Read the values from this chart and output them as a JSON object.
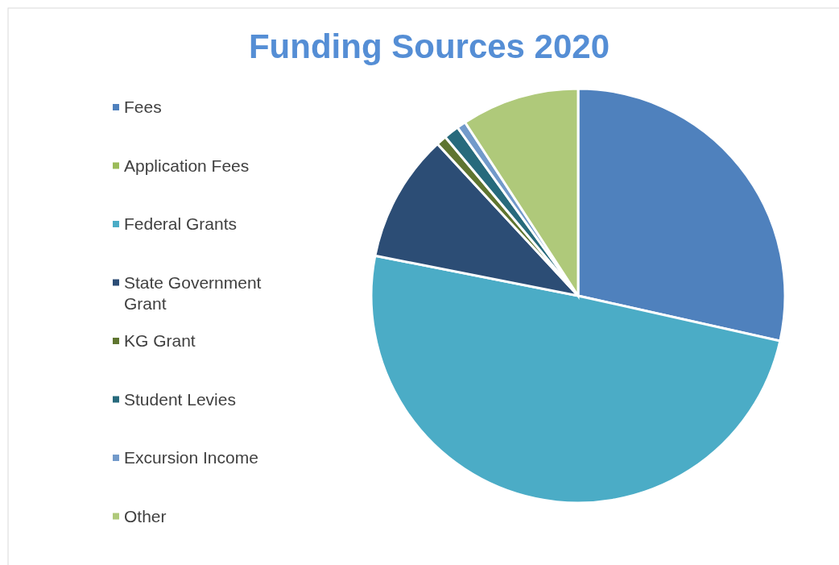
{
  "chart_data": {
    "type": "pie",
    "title": "Funding Sources 2020",
    "categories": [
      "Fees",
      "Application Fees",
      "Federal Grants",
      "State Government Grant",
      "KG Grant",
      "Student Levies",
      "Excursion Income",
      "Other"
    ],
    "values": [
      28.5,
      0,
      49.6,
      10,
      0.8,
      1.2,
      0.7,
      9.2
    ],
    "colors": [
      "#4f81bd",
      "#9bbb59",
      "#4bacc6",
      "#2c4d75",
      "#5f7530",
      "#276a7c",
      "#729aca",
      "#afc97a"
    ],
    "legend": "left"
  }
}
